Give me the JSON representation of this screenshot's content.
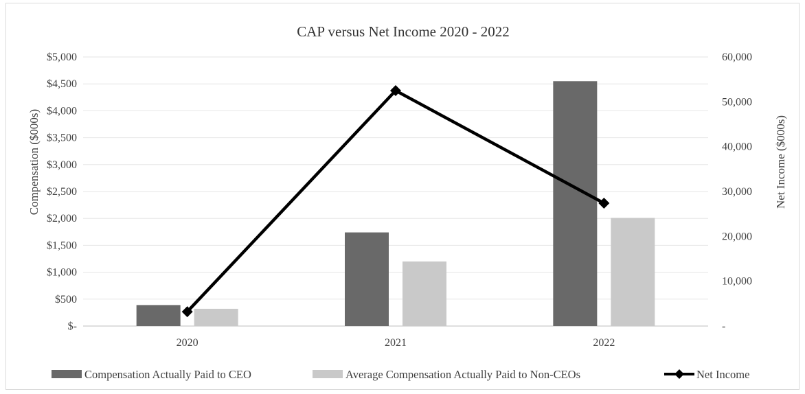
{
  "chart_data": {
    "type": "bar",
    "title": "CAP versus Net Income 2020 - 2022",
    "categories": [
      "2020",
      "2021",
      "2022"
    ],
    "series": [
      {
        "name": "Compensation Actually Paid to CEO",
        "type": "bar",
        "axis": "left",
        "color": "#696969",
        "values": [
          390,
          1740,
          4550
        ]
      },
      {
        "name": "Average Compensation Actually Paid to Non-CEOs",
        "type": "bar",
        "axis": "left",
        "color": "#c9c9c9",
        "values": [
          320,
          1200,
          2010
        ]
      },
      {
        "name": "Net Income",
        "type": "line",
        "axis": "right",
        "color": "#000000",
        "marker": "diamond",
        "values": [
          3200,
          52500,
          27400
        ]
      }
    ],
    "ylabel": "Compensation ($000s)",
    "ylim": [
      0,
      5000
    ],
    "yticks": [
      0,
      500,
      1000,
      1500,
      2000,
      2500,
      3000,
      3500,
      4000,
      4500,
      5000
    ],
    "ytick_labels": [
      "$-",
      "$500",
      "$1,000",
      "$1,500",
      "$2,000",
      "$2,500",
      "$3,000",
      "$3,500",
      "$4,000",
      "$4,500",
      "$5,000"
    ],
    "y2label": "Net Income ($000s)",
    "y2lim": [
      0,
      60000
    ],
    "y2ticks": [
      0,
      10000,
      20000,
      30000,
      40000,
      50000,
      60000
    ],
    "y2tick_labels": [
      "-",
      "10,000",
      "20,000",
      "30,000",
      "40,000",
      "50,000",
      "60,000"
    ],
    "grid": true,
    "legend": "bottom"
  }
}
